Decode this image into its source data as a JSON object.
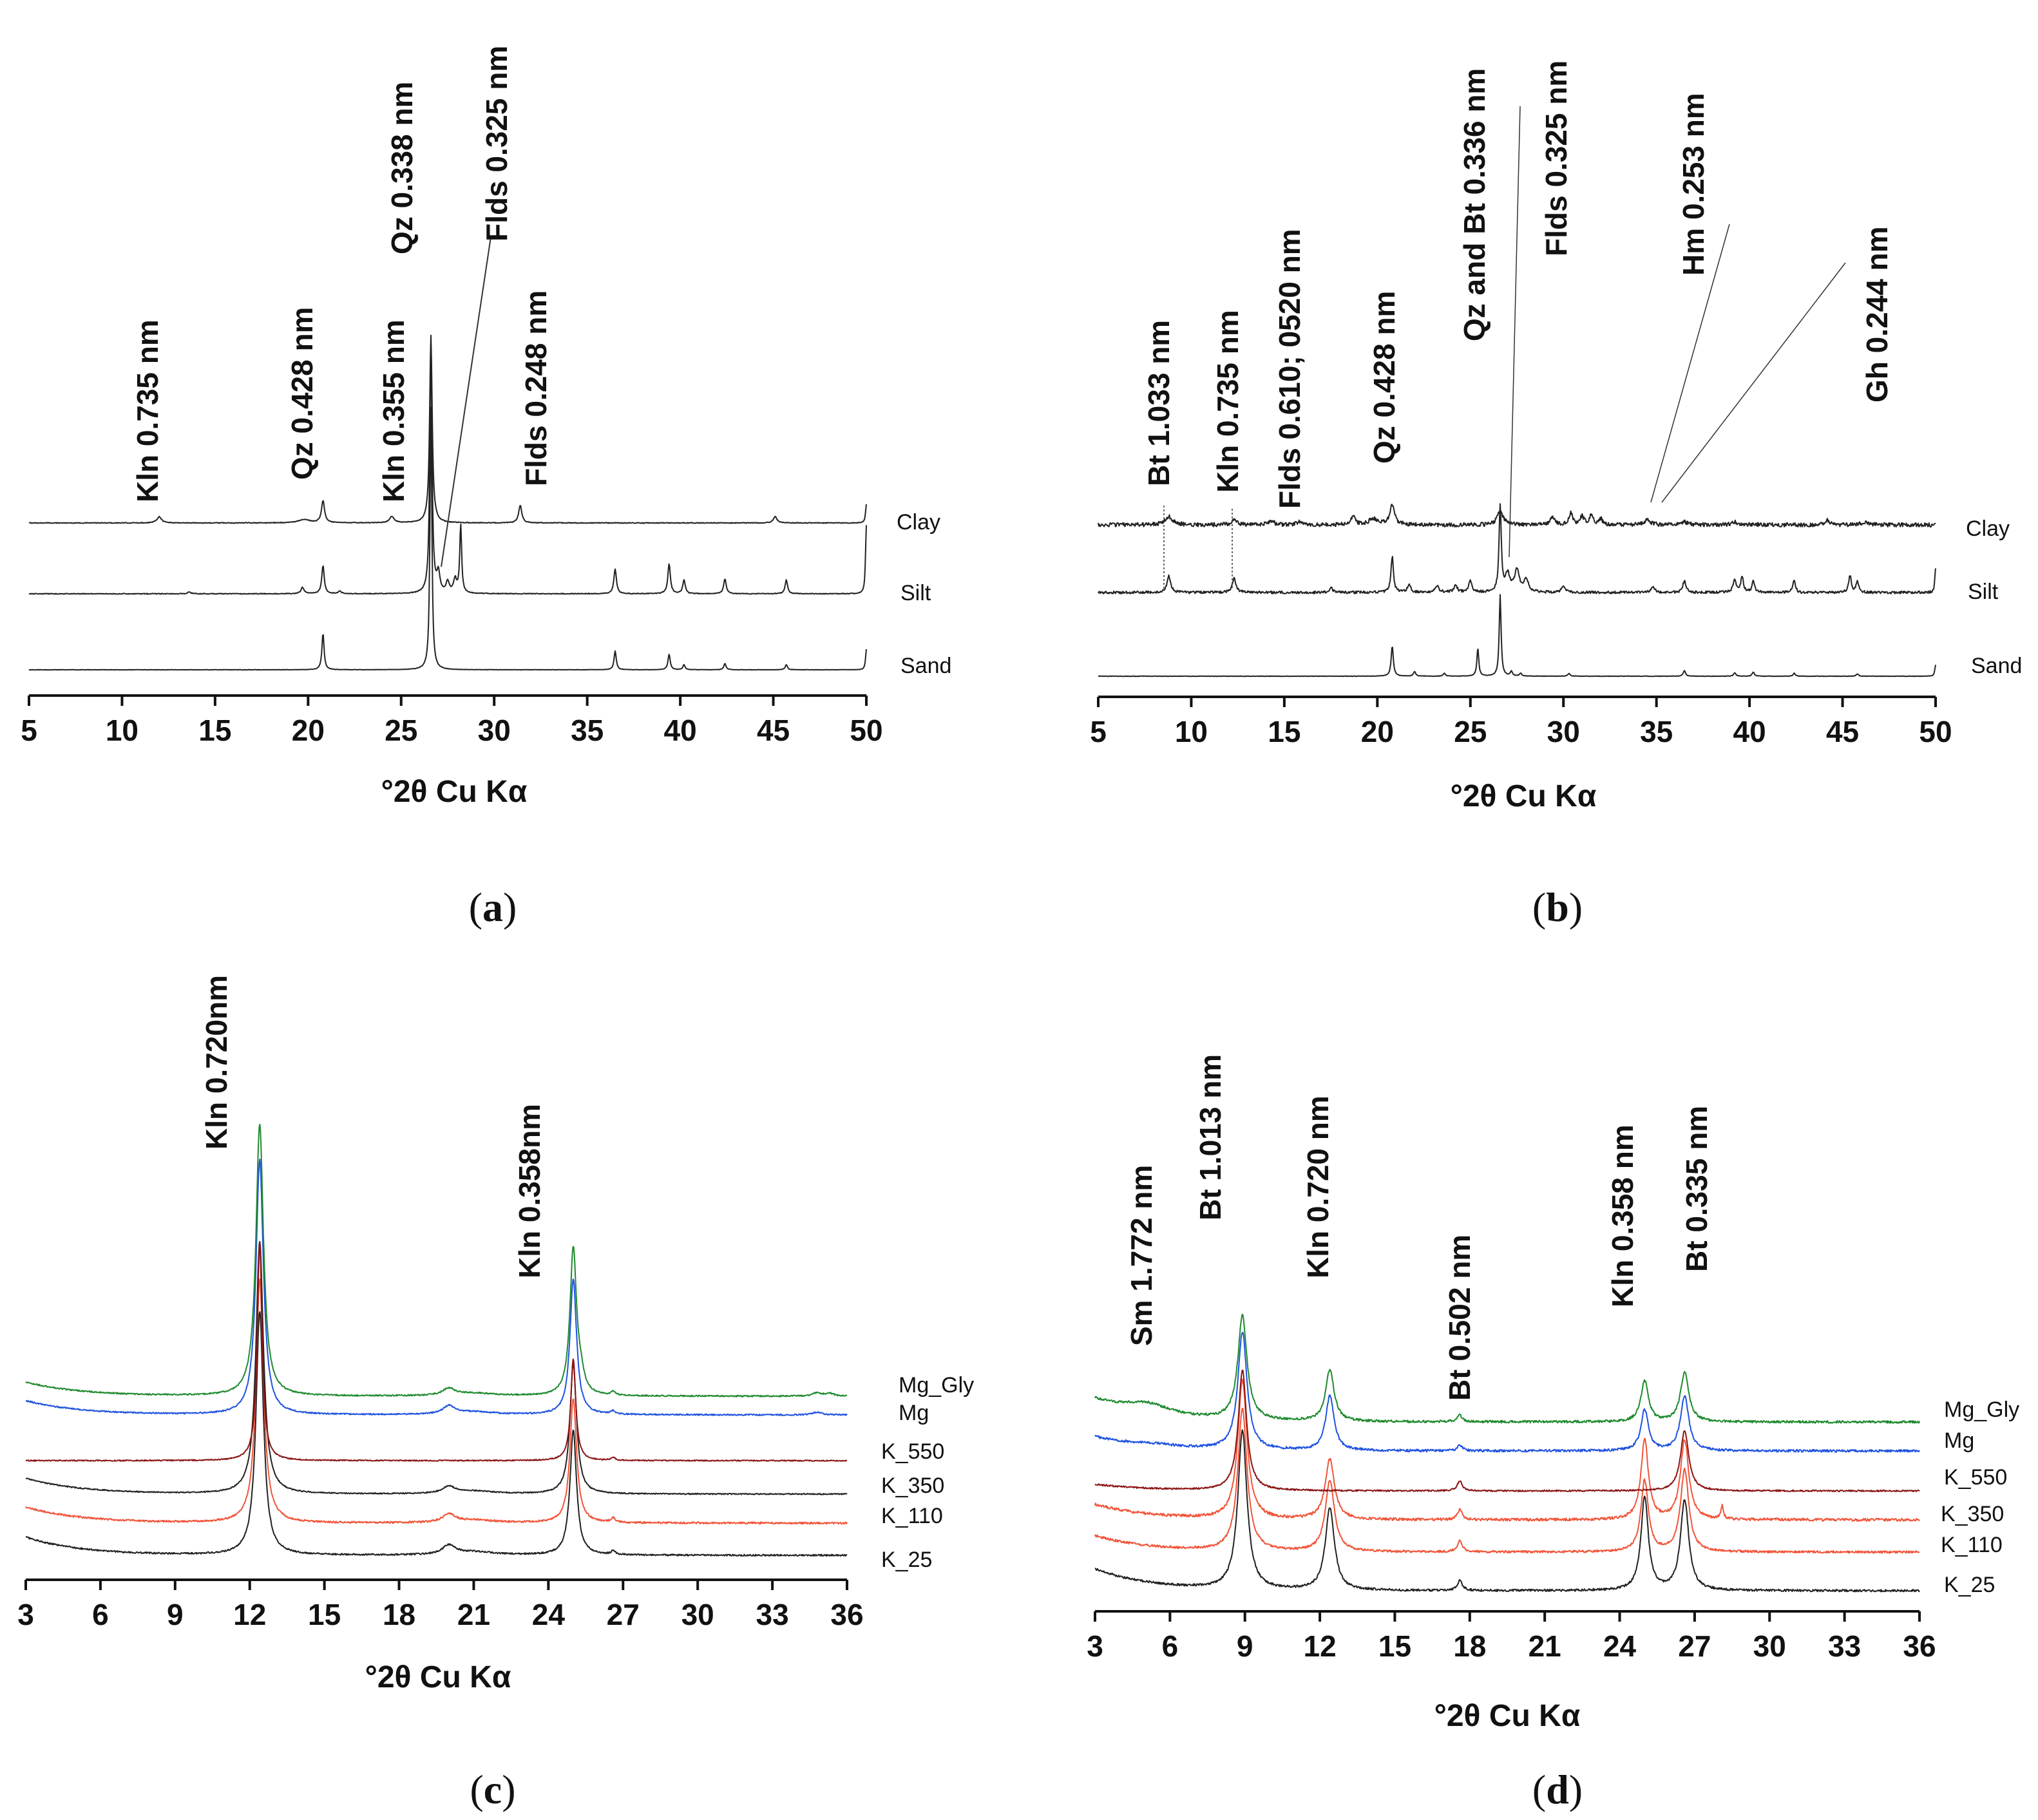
{
  "chart_data": [
    {
      "id": "a",
      "panel_label": "a",
      "type": "line",
      "xlabel": "°2θ Cu Kα",
      "xlim": [
        5,
        50
      ],
      "xticks": [
        "5",
        "10",
        "15",
        "20",
        "25",
        "30",
        "35",
        "40",
        "45",
        "50"
      ],
      "series": [
        {
          "name": "Clay",
          "color": "#222222",
          "noise": 0.6,
          "peaks": [
            [
              12.0,
              10,
              0.15
            ],
            [
              19.8,
              5,
              0.4
            ],
            [
              20.8,
              35,
              0.1
            ],
            [
              24.5,
              10,
              0.15
            ],
            [
              26.6,
              300,
              0.08
            ],
            [
              31.4,
              28,
              0.1
            ],
            [
              45.1,
              10,
              0.12
            ],
            [
              50.0,
              30,
              0.05
            ]
          ]
        },
        {
          "name": "Silt",
          "color": "#222222",
          "noise": 0.6,
          "peaks": [
            [
              13.6,
              3,
              0.1
            ],
            [
              19.7,
              10,
              0.1
            ],
            [
              20.8,
              45,
              0.08
            ],
            [
              21.7,
              4,
              0.1
            ],
            [
              26.6,
              400,
              0.07
            ],
            [
              27.0,
              30,
              0.1
            ],
            [
              27.5,
              18,
              0.1
            ],
            [
              27.9,
              22,
              0.1
            ],
            [
              28.2,
              110,
              0.06
            ],
            [
              36.5,
              40,
              0.08
            ],
            [
              39.4,
              48,
              0.08
            ],
            [
              40.2,
              22,
              0.08
            ],
            [
              42.4,
              24,
              0.08
            ],
            [
              45.7,
              22,
              0.08
            ],
            [
              50.0,
              110,
              0.05
            ]
          ]
        },
        {
          "name": "Sand",
          "color": "#222222",
          "noise": 0.3,
          "peaks": [
            [
              20.8,
              58,
              0.07
            ],
            [
              26.6,
              420,
              0.06
            ],
            [
              36.5,
              30,
              0.07
            ],
            [
              39.4,
              25,
              0.07
            ],
            [
              40.2,
              8,
              0.07
            ],
            [
              42.4,
              10,
              0.07
            ],
            [
              45.7,
              8,
              0.07
            ],
            [
              50.0,
              33,
              0.05
            ]
          ]
        }
      ],
      "annotations": [
        "Kln 0.735 nm",
        "Qz 0.428 nm",
        "Kln 0.355 nm",
        "Qz 0.338 nm",
        "Flds 0.325 nm",
        "Flds 0.248 nm"
      ]
    },
    {
      "id": "b",
      "panel_label": "b",
      "type": "line",
      "xlabel": "°2θ Cu Kα",
      "xlim": [
        5,
        50
      ],
      "xticks": [
        "5",
        "10",
        "15",
        "20",
        "25",
        "30",
        "35",
        "40",
        "45",
        "50"
      ],
      "series": [
        {
          "name": "Clay",
          "color": "#222222",
          "noise": 3.5,
          "peaks": [
            [
              8.8,
              14,
              0.25
            ],
            [
              12.3,
              8,
              0.2
            ],
            [
              14.3,
              6,
              0.2
            ],
            [
              15.8,
              5,
              0.2
            ],
            [
              18.7,
              14,
              0.15
            ],
            [
              19.8,
              10,
              0.3
            ],
            [
              20.8,
              34,
              0.15
            ],
            [
              26.6,
              22,
              0.2
            ],
            [
              29.4,
              12,
              0.15
            ],
            [
              30.4,
              20,
              0.12
            ],
            [
              31.0,
              14,
              0.12
            ],
            [
              31.5,
              16,
              0.12
            ],
            [
              32.0,
              10,
              0.12
            ],
            [
              34.5,
              8,
              0.2
            ],
            [
              36.5,
              5,
              0.2
            ],
            [
              39.2,
              5,
              0.2
            ],
            [
              44.2,
              8,
              0.15
            ],
            [
              46.2,
              5,
              0.2
            ]
          ]
        },
        {
          "name": "Silt",
          "color": "#222222",
          "noise": 2.2,
          "peaks": [
            [
              8.8,
              28,
              0.12
            ],
            [
              12.3,
              24,
              0.12
            ],
            [
              17.5,
              8,
              0.12
            ],
            [
              20.8,
              62,
              0.08
            ],
            [
              21.7,
              14,
              0.1
            ],
            [
              23.2,
              12,
              0.12
            ],
            [
              24.2,
              12,
              0.12
            ],
            [
              25.0,
              20,
              0.1
            ],
            [
              26.6,
              150,
              0.07
            ],
            [
              27.0,
              30,
              0.15
            ],
            [
              27.5,
              38,
              0.15
            ],
            [
              28.0,
              22,
              0.15
            ],
            [
              30.0,
              12,
              0.1
            ],
            [
              34.8,
              10,
              0.12
            ],
            [
              36.5,
              20,
              0.1
            ],
            [
              39.2,
              22,
              0.1
            ],
            [
              39.6,
              28,
              0.08
            ],
            [
              40.2,
              20,
              0.08
            ],
            [
              42.4,
              22,
              0.08
            ],
            [
              45.4,
              30,
              0.08
            ],
            [
              45.8,
              20,
              0.08
            ],
            [
              50.0,
              40,
              0.05
            ]
          ]
        },
        {
          "name": "Sand",
          "color": "#222222",
          "noise": 0.4,
          "peaks": [
            [
              20.8,
              52,
              0.07
            ],
            [
              22.0,
              8,
              0.07
            ],
            [
              23.6,
              5,
              0.07
            ],
            [
              25.4,
              48,
              0.06
            ],
            [
              26.6,
              140,
              0.06
            ],
            [
              27.2,
              8,
              0.07
            ],
            [
              27.7,
              5,
              0.07
            ],
            [
              30.3,
              5,
              0.07
            ],
            [
              36.5,
              10,
              0.07
            ],
            [
              39.2,
              6,
              0.07
            ],
            [
              40.2,
              7,
              0.07
            ],
            [
              42.4,
              5,
              0.07
            ],
            [
              45.8,
              4,
              0.07
            ],
            [
              50.0,
              20,
              0.05
            ]
          ]
        }
      ],
      "annotations": [
        "Bt 1.033 nm",
        "Kln 0.735 nm",
        "Flds 0.610; 0520 nm",
        "Qz 0.428 nm",
        "Qz and Bt 0.336 nm",
        "Flds 0.325 nm",
        "Hm 0.253 nm",
        "Gh 0.244 nm"
      ]
    },
    {
      "id": "c",
      "panel_label": "c",
      "type": "line",
      "xlabel": "°2θ Cu Kα",
      "xlim": [
        3,
        36
      ],
      "xticks": [
        "3",
        "6",
        "9",
        "12",
        "15",
        "18",
        "21",
        "24",
        "27",
        "30",
        "33",
        "36"
      ],
      "series": [
        {
          "name": "Mg_Gly",
          "color": "#1f8a2e",
          "noise": 1.2,
          "lowAngle": 25,
          "peaks": [
            [
              12.4,
              480,
              0.18
            ],
            [
              20.0,
              12,
              0.3
            ],
            [
              21.0,
              5,
              1.0
            ],
            [
              25.0,
              260,
              0.16
            ],
            [
              25.3,
              25,
              0.15
            ],
            [
              26.6,
              6,
              0.1
            ],
            [
              34.8,
              6,
              0.2
            ],
            [
              35.3,
              5,
              0.2
            ]
          ]
        },
        {
          "name": "Mg",
          "color": "#1f52e0",
          "noise": 1.2,
          "lowAngle": 25,
          "peaks": [
            [
              12.4,
              450,
              0.18
            ],
            [
              20.0,
              14,
              0.3
            ],
            [
              21.0,
              5,
              1.0
            ],
            [
              25.0,
              240,
              0.16
            ],
            [
              26.6,
              6,
              0.1
            ],
            [
              34.8,
              5,
              0.2
            ]
          ]
        },
        {
          "name": "K_550",
          "color": "#8b1515",
          "noise": 1.0,
          "lowAngle": 0,
          "peaks": [
            [
              12.4,
              385,
              0.12
            ],
            [
              25.0,
              180,
              0.12
            ],
            [
              26.6,
              5,
              0.1
            ]
          ]
        },
        {
          "name": "K_350",
          "color": "#222222",
          "noise": 1.0,
          "lowAngle": 28,
          "peaks": [
            [
              12.4,
              445,
              0.18
            ],
            [
              20.0,
              12,
              0.3
            ],
            [
              21.0,
              5,
              1.0
            ],
            [
              25.0,
              230,
              0.16
            ]
          ]
        },
        {
          "name": "K_110",
          "color": "#f0553a",
          "noise": 1.6,
          "lowAngle": 28,
          "peaks": [
            [
              12.4,
              430,
              0.18
            ],
            [
              20.0,
              14,
              0.3
            ],
            [
              21.0,
              5,
              1.0
            ],
            [
              25.0,
              220,
              0.16
            ],
            [
              26.6,
              8,
              0.1
            ]
          ]
        },
        {
          "name": "K_25",
          "color": "#222222",
          "noise": 1.4,
          "lowAngle": 32,
          "peaks": [
            [
              12.4,
              430,
              0.18
            ],
            [
              20.0,
              16,
              0.3
            ],
            [
              21.0,
              6,
              1.0
            ],
            [
              25.0,
              220,
              0.16
            ],
            [
              26.6,
              6,
              0.1
            ]
          ]
        }
      ],
      "annotations": [
        "Kln 0.720nm",
        "Kln 0.358nm"
      ]
    },
    {
      "id": "d",
      "panel_label": "d",
      "type": "line",
      "xlabel": "°2θ Cu Kα",
      "xlim": [
        3,
        36
      ],
      "xticks": [
        "3",
        "6",
        "9",
        "12",
        "15",
        "18",
        "21",
        "24",
        "27",
        "30",
        "33",
        "36"
      ],
      "series": [
        {
          "name": "Mg_Gly",
          "color": "#1f8a2e",
          "noise": 2.2,
          "lowAngle": 40,
          "peaks": [
            [
              5.1,
              20,
              1.2
            ],
            [
              8.9,
              190,
              0.22
            ],
            [
              12.4,
              95,
              0.2
            ],
            [
              17.6,
              12,
              0.12
            ],
            [
              25.0,
              75,
              0.18
            ],
            [
              26.6,
              90,
              0.2
            ]
          ]
        },
        {
          "name": "Mg",
          "color": "#1f52e0",
          "noise": 2.2,
          "lowAngle": 25,
          "peaks": [
            [
              5.3,
              5,
              1.5
            ],
            [
              8.9,
              215,
              0.22
            ],
            [
              12.4,
              100,
              0.2
            ],
            [
              17.6,
              10,
              0.12
            ],
            [
              25.0,
              75,
              0.18
            ],
            [
              26.6,
              100,
              0.2
            ]
          ]
        },
        {
          "name": "K_550",
          "color": "#8b1515",
          "noise": 1.4,
          "lowAngle": 12,
          "peaks": [
            [
              8.9,
              220,
              0.2
            ],
            [
              17.6,
              18,
              0.12
            ],
            [
              26.6,
              110,
              0.2
            ]
          ]
        },
        {
          "name": "K_350",
          "color": "#f0553a",
          "noise": 2.5,
          "lowAngle": 28,
          "peaks": [
            [
              8.9,
              255,
              0.22
            ],
            [
              12.4,
              110,
              0.22
            ],
            [
              17.6,
              18,
              0.12
            ],
            [
              25.0,
              145,
              0.18
            ],
            [
              26.6,
              145,
              0.2
            ],
            [
              28.1,
              25,
              0.06
            ]
          ]
        },
        {
          "name": "K_110",
          "color": "#f0553a",
          "noise": 2.0,
          "lowAngle": 30,
          "peaks": [
            [
              8.9,
              260,
              0.22
            ],
            [
              12.4,
              130,
              0.22
            ],
            [
              17.6,
              20,
              0.12
            ],
            [
              25.0,
              130,
              0.18
            ],
            [
              26.6,
              150,
              0.2
            ]
          ]
        },
        {
          "name": "K_25",
          "color": "#222222",
          "noise": 2.0,
          "lowAngle": 40,
          "peaks": [
            [
              8.9,
              290,
              0.22
            ],
            [
              12.4,
              150,
              0.22
            ],
            [
              17.6,
              18,
              0.12
            ],
            [
              25.0,
              170,
              0.18
            ],
            [
              26.6,
              165,
              0.2
            ]
          ]
        }
      ],
      "annotations": [
        "Sm 1.772 nm",
        "Bt 1.013 nm",
        "Kln 0.720 nm",
        "Bt 0.502 nm",
        "Kln 0.358 nm",
        "Bt 0.335 nm"
      ]
    }
  ]
}
